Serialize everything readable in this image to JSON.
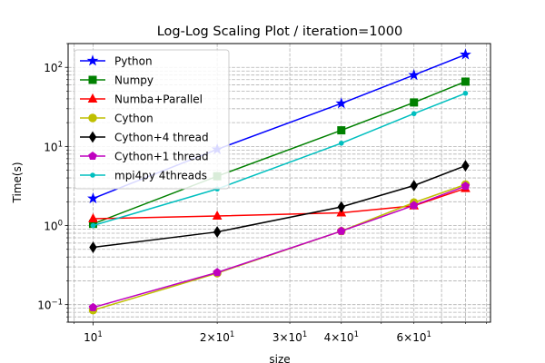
{
  "chart_data": {
    "type": "line",
    "title": "Log-Log Scaling Plot / iteration=1000",
    "xlabel": "size",
    "ylabel": "Time(s)",
    "xscale": "log",
    "yscale": "log",
    "xlim": [
      8.7,
      92
    ],
    "ylim": [
      0.06,
      200
    ],
    "grid": "both (major and minor), dashed",
    "legend_position": "upper-left",
    "x": [
      10,
      20,
      40,
      60,
      80
    ],
    "x_ticks": [
      {
        "value": 10,
        "base": "10",
        "exp": "1",
        "coef": ""
      },
      {
        "value": 20,
        "base": "10",
        "exp": "1",
        "coef": "2×"
      },
      {
        "value": 30,
        "base": "10",
        "exp": "1",
        "coef": "3×"
      },
      {
        "value": 40,
        "base": "10",
        "exp": "1",
        "coef": "4×"
      },
      {
        "value": 60,
        "base": "10",
        "exp": "1",
        "coef": "6×"
      }
    ],
    "y_ticks": [
      {
        "value": 0.1,
        "base": "10",
        "exp": "−1"
      },
      {
        "value": 1,
        "base": "10",
        "exp": "0"
      },
      {
        "value": 10,
        "base": "10",
        "exp": "1"
      },
      {
        "value": 100,
        "base": "10",
        "exp": "2"
      }
    ],
    "series": [
      {
        "name": "Python",
        "color": "#0000ff",
        "marker": "star",
        "values": [
          2.2,
          9.2,
          35,
          80,
          145
        ]
      },
      {
        "name": "Numpy",
        "color": "#008000",
        "marker": "square",
        "values": [
          1.05,
          4.2,
          16,
          36,
          66
        ]
      },
      {
        "name": "Numba+Parallel",
        "color": "#ff0000",
        "marker": "triangle",
        "values": [
          1.22,
          1.32,
          1.45,
          1.78,
          2.95
        ]
      },
      {
        "name": "Cython",
        "color": "#bfbf00",
        "marker": "circle",
        "values": [
          0.085,
          0.25,
          0.85,
          1.95,
          3.3
        ]
      },
      {
        "name": "Cython+4 thread",
        "color": "#000000",
        "marker": "diamond",
        "values": [
          0.53,
          0.83,
          1.72,
          3.2,
          5.7
        ]
      },
      {
        "name": "Cython+1 thread",
        "color": "#bf00bf",
        "marker": "pentagon",
        "values": [
          0.092,
          0.255,
          0.85,
          1.8,
          3.15
        ]
      },
      {
        "name": "mpi4py 4threads",
        "color": "#00bfbf",
        "marker": "point",
        "values": [
          1.0,
          2.9,
          11,
          26,
          47
        ]
      }
    ]
  }
}
